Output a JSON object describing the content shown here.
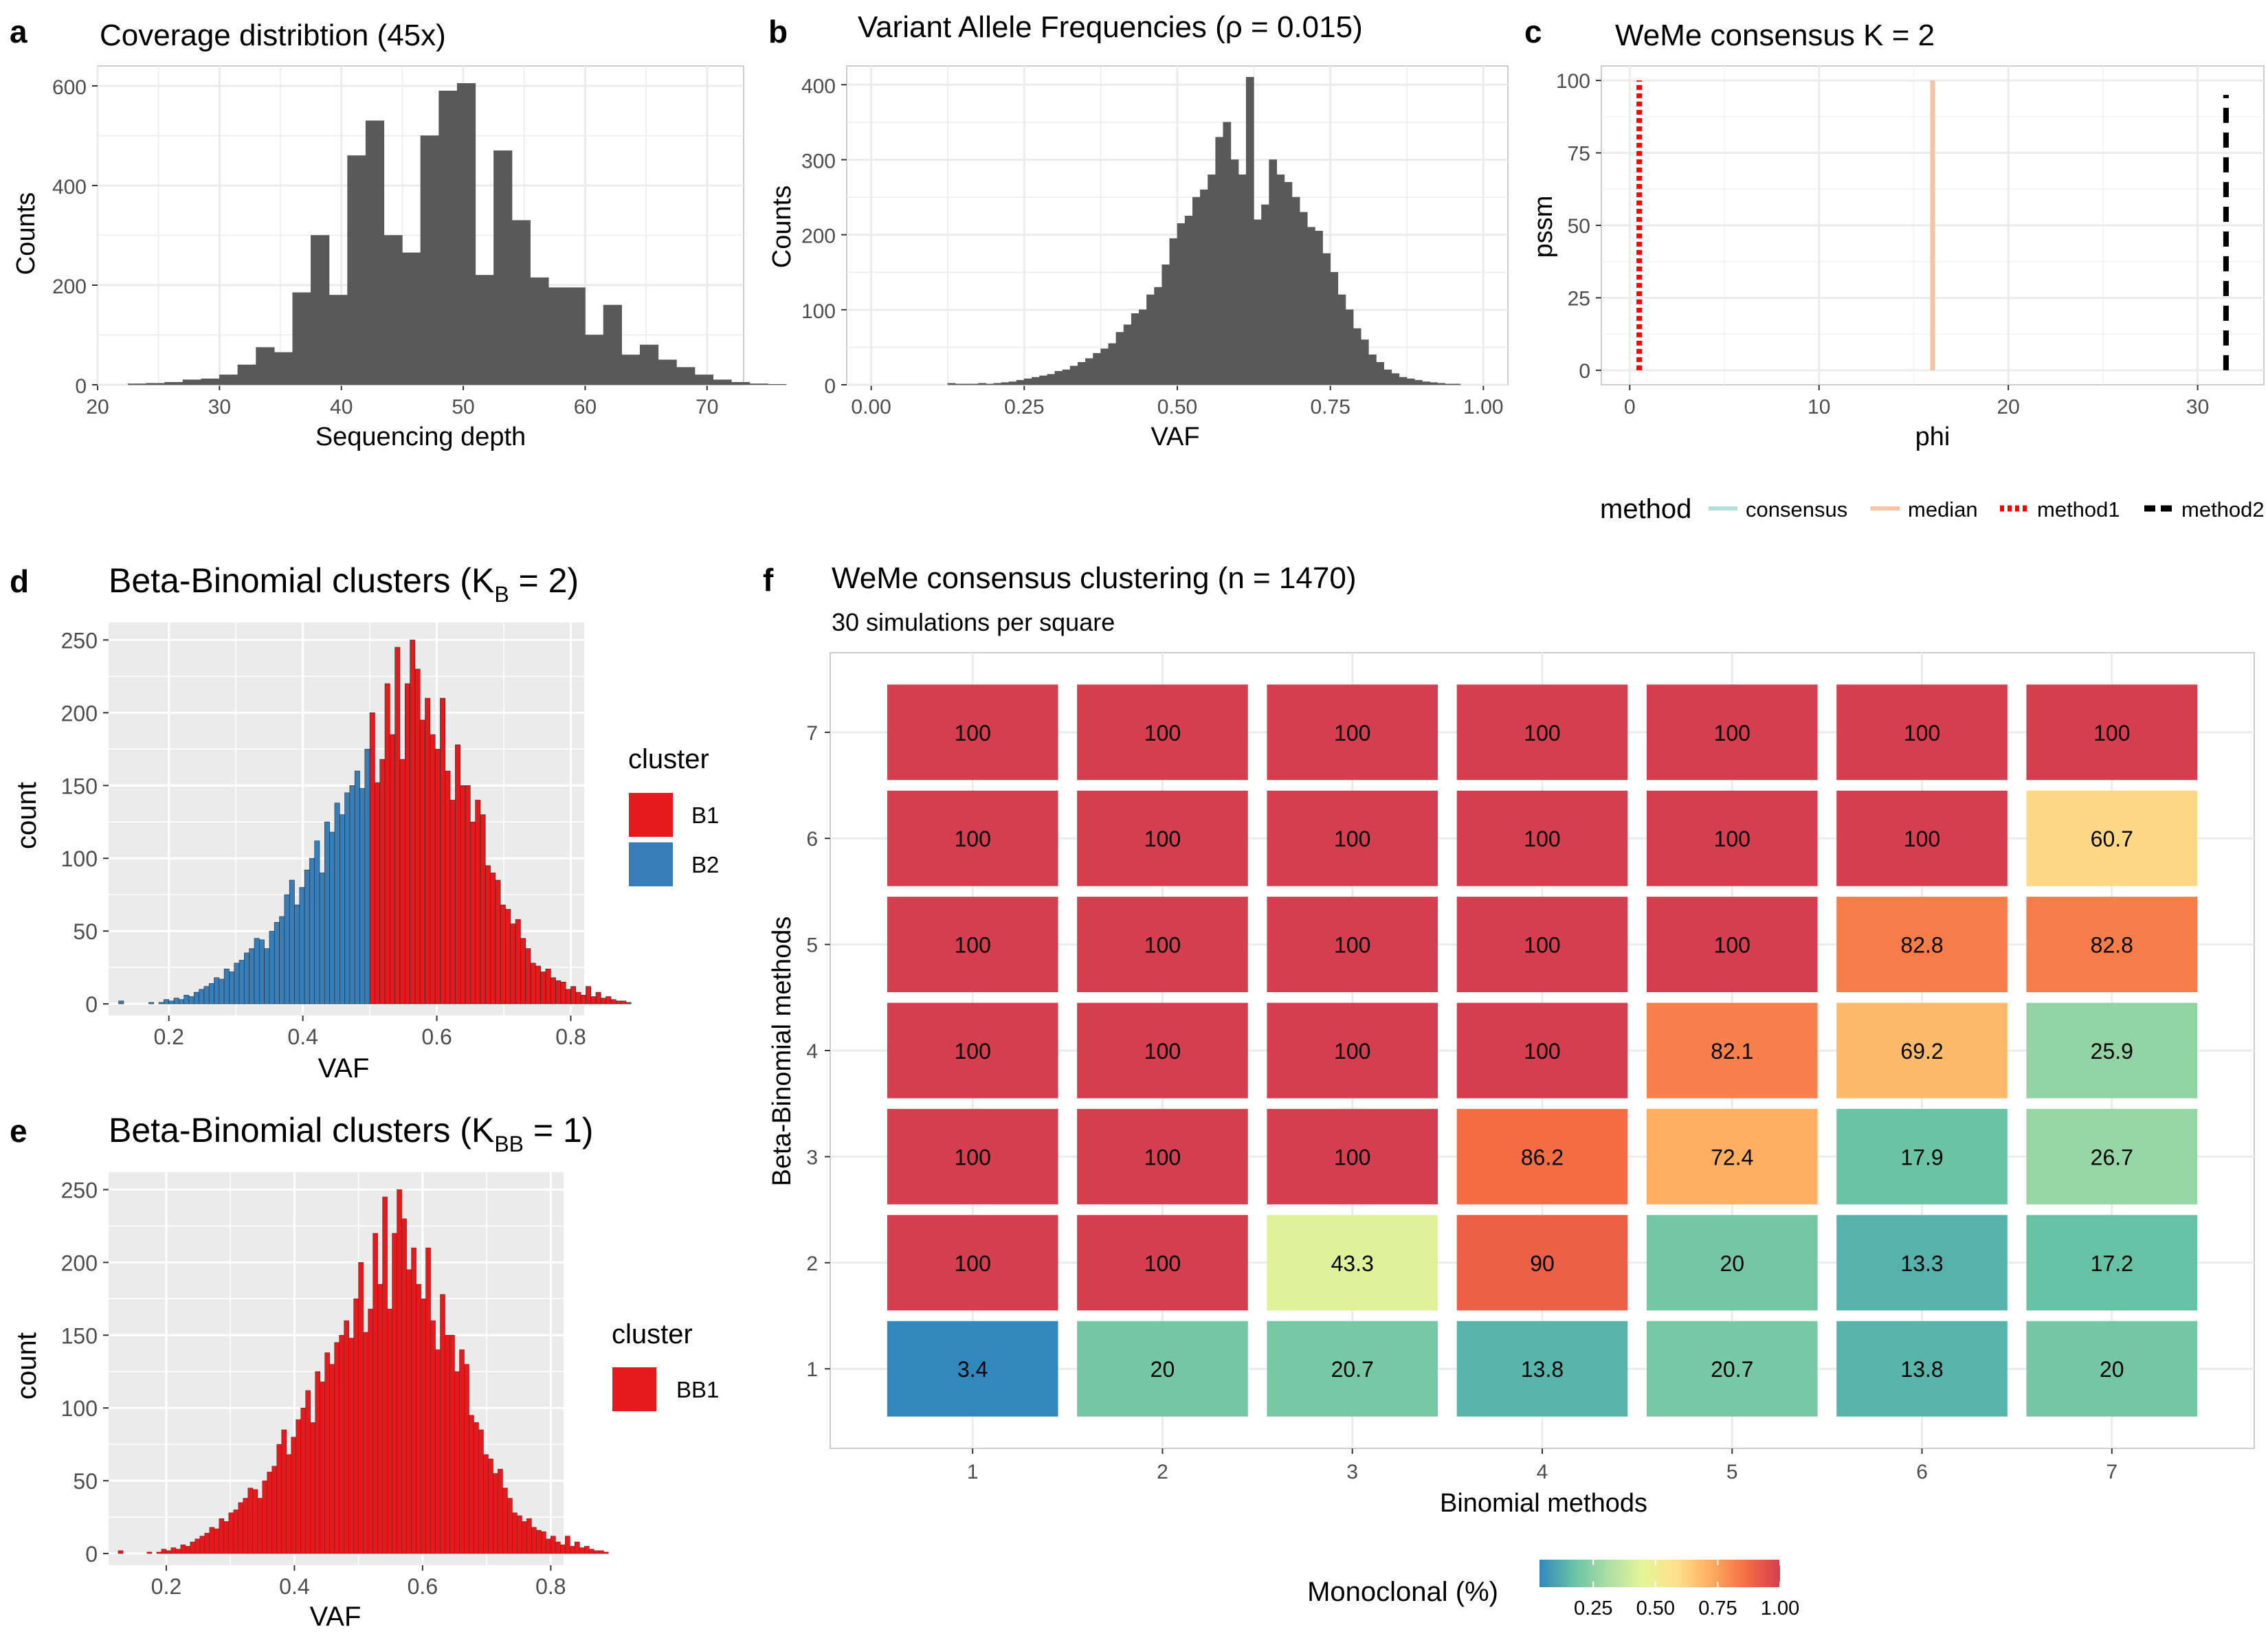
{
  "panels": {
    "a": {
      "letter": "a",
      "chart_data": {
        "type": "bar",
        "title": "Coverage distribtion (45x)",
        "xlabel": "Sequencing depth",
        "ylabel": "Counts",
        "xlim": [
          20,
          73
        ],
        "ylim": [
          0,
          640
        ],
        "xticks": [
          20,
          30,
          40,
          50,
          60,
          70
        ],
        "yticks": [
          0,
          200,
          400,
          600
        ],
        "bin_width": 1.5,
        "bin_start": 22.5,
        "values": [
          2,
          3,
          5,
          10,
          12,
          20,
          40,
          75,
          65,
          185,
          300,
          180,
          460,
          530,
          300,
          265,
          500,
          590,
          605,
          220,
          470,
          330,
          215,
          195,
          195,
          100,
          160,
          60,
          80,
          50,
          35,
          20,
          10,
          5,
          2,
          1
        ],
        "grid": true,
        "background": "white"
      }
    },
    "b": {
      "letter": "b",
      "chart_data": {
        "type": "bar",
        "title": "Variant Allele Frequencies (ρ = 0.015)",
        "xlabel": "VAF",
        "ylabel": "Counts",
        "xlim": [
          -0.04,
          1.04
        ],
        "ylim": [
          0,
          425
        ],
        "xticks": [
          0.0,
          0.25,
          0.5,
          0.75,
          1.0
        ],
        "xtick_labels": [
          "0.00",
          "0.25",
          "0.50",
          "0.75",
          "1.00"
        ],
        "yticks": [
          0,
          100,
          200,
          300,
          400
        ],
        "bin_width": 0.0125,
        "bin_start": 0.125,
        "values": [
          2,
          1,
          1,
          1,
          2,
          1,
          2,
          3,
          4,
          6,
          8,
          10,
          12,
          14,
          18,
          20,
          25,
          30,
          35,
          42,
          48,
          55,
          70,
          80,
          95,
          100,
          120,
          130,
          160,
          195,
          215,
          225,
          250,
          260,
          280,
          330,
          350,
          300,
          280,
          410,
          220,
          240,
          300,
          280,
          270,
          250,
          230,
          210,
          205,
          175,
          150,
          120,
          100,
          75,
          60,
          40,
          30,
          20,
          15,
          10,
          8,
          6,
          4,
          3,
          2,
          1,
          1
        ]
      }
    },
    "c": {
      "letter": "c",
      "chart_data": {
        "type": "line",
        "title": "WeMe consensus K = 2",
        "xlabel": "phi",
        "ylabel": "pssm",
        "xlim": [
          -1.5,
          33.5
        ],
        "ylim": [
          -5,
          105
        ],
        "xticks": [
          0,
          10,
          20,
          30
        ],
        "yticks": [
          0,
          25,
          50,
          75,
          100
        ],
        "series": [
          {
            "name": "consensus",
            "x": 16,
            "color": "#b2dfdb",
            "dash": "solid"
          },
          {
            "name": "median",
            "x": 16,
            "color": "#f5c4a4",
            "dash": "solid"
          },
          {
            "name": "method1",
            "x": 0.5,
            "color": "#ff0000",
            "dash": "dotted"
          },
          {
            "name": "method2",
            "x": 31.5,
            "color": "#000000",
            "dash": "dashed"
          }
        ],
        "line_ranges": {
          "consensus": [
            0,
            100
          ],
          "median": [
            0,
            100
          ],
          "method1": [
            0,
            100
          ],
          "method2": [
            0,
            95
          ]
        }
      },
      "legend": {
        "title": "method",
        "items": [
          "consensus",
          "median",
          "method1",
          "method2"
        ]
      }
    },
    "d": {
      "letter": "d",
      "chart_data": {
        "type": "bar",
        "title": "Beta-Binomial clusters (K",
        "title_sub": "B",
        "title_end": " = 2)",
        "xlabel": "VAF",
        "ylabel": "count",
        "xlim": [
          0.11,
          0.82
        ],
        "ylim": [
          -8,
          262
        ],
        "xticks": [
          0.2,
          0.4,
          0.6,
          0.8
        ],
        "yticks": [
          0,
          50,
          100,
          150,
          200,
          250
        ],
        "bin_width": 0.0075,
        "bin_start": 0.125,
        "split_at": 0.5,
        "values": [
          2,
          0,
          0,
          0,
          0,
          0,
          1,
          0,
          1,
          3,
          2,
          4,
          3,
          6,
          5,
          8,
          10,
          12,
          14,
          18,
          17,
          24,
          22,
          28,
          30,
          35,
          38,
          45,
          44,
          38,
          50,
          56,
          60,
          75,
          85,
          68,
          80,
          92,
          100,
          112,
          90,
          125,
          118,
          138,
          130,
          145,
          150,
          160,
          148,
          175,
          200,
          152,
          168,
          220,
          185,
          245,
          168,
          220,
          250,
          230,
          195,
          210,
          185,
          175,
          210,
          160,
          140,
          178,
          150,
          150,
          125,
          140,
          130,
          95,
          90,
          85,
          68,
          65,
          55,
          58,
          45,
          38,
          28,
          26,
          22,
          24,
          18,
          16,
          15,
          10,
          12,
          8,
          6,
          12,
          5,
          8,
          4,
          5,
          3,
          2,
          2,
          1
        ],
        "background": "#ebebeb"
      },
      "legend": {
        "title": "cluster",
        "items": [
          {
            "label": "B1",
            "color": "#e41a1c"
          },
          {
            "label": "B2",
            "color": "#377eb8"
          }
        ]
      }
    },
    "e": {
      "letter": "e",
      "chart_data": {
        "type": "bar",
        "title": "Beta-Binomial clusters (K",
        "title_sub": "BB",
        "title_end": " = 1)",
        "xlabel": "VAF",
        "ylabel": "count",
        "xlim": [
          0.11,
          0.82
        ],
        "ylim": [
          -8,
          262
        ],
        "xticks": [
          0.2,
          0.4,
          0.6,
          0.8
        ],
        "yticks": [
          0,
          50,
          100,
          150,
          200,
          250
        ],
        "bin_width": 0.0075,
        "bin_start": 0.125,
        "values": [
          2,
          0,
          0,
          0,
          0,
          0,
          1,
          0,
          1,
          3,
          2,
          4,
          3,
          6,
          5,
          8,
          10,
          12,
          14,
          18,
          17,
          24,
          22,
          28,
          30,
          35,
          38,
          45,
          44,
          38,
          50,
          56,
          60,
          75,
          85,
          68,
          80,
          92,
          100,
          112,
          90,
          125,
          118,
          138,
          130,
          145,
          150,
          160,
          148,
          175,
          200,
          152,
          168,
          220,
          185,
          245,
          168,
          220,
          250,
          230,
          195,
          210,
          185,
          175,
          210,
          160,
          140,
          178,
          150,
          150,
          125,
          140,
          130,
          95,
          90,
          85,
          68,
          65,
          55,
          58,
          45,
          38,
          28,
          26,
          22,
          24,
          18,
          16,
          15,
          10,
          12,
          8,
          6,
          12,
          5,
          8,
          4,
          5,
          3,
          2,
          2,
          1
        ],
        "background": "#ebebeb"
      },
      "legend": {
        "title": "cluster",
        "items": [
          {
            "label": "BB1",
            "color": "#e41a1c"
          }
        ]
      }
    },
    "f": {
      "letter": "f",
      "chart_data": {
        "type": "heatmap",
        "title": "WeMe consensus clustering (n = 1470)",
        "subtitle": "30 simulations per square",
        "xlabel": "Binomial methods",
        "ylabel": "Beta-Binomial methods",
        "x": [
          1,
          2,
          3,
          4,
          5,
          6,
          7
        ],
        "y": [
          1,
          2,
          3,
          4,
          5,
          6,
          7
        ],
        "values_by_row_y_descending": [
          [
            100,
            100,
            100,
            100,
            100,
            100,
            100
          ],
          [
            100,
            100,
            100,
            100,
            100,
            100,
            60.7
          ],
          [
            100,
            100,
            100,
            100,
            100,
            82.8,
            82.8
          ],
          [
            100,
            100,
            100,
            100,
            82.1,
            69.2,
            25.9
          ],
          [
            100,
            100,
            100,
            86.2,
            72.4,
            17.9,
            26.7
          ],
          [
            100,
            100,
            43.3,
            90,
            20,
            13.3,
            17.2
          ],
          [
            3.4,
            20,
            20.7,
            13.8,
            20.7,
            13.8,
            20
          ]
        ],
        "colorscale": [
          "#3288bd",
          "#66c2a5",
          "#abdda4",
          "#e6f598",
          "#fee08b",
          "#fdae61",
          "#f46d43",
          "#d53e4f"
        ],
        "legend": {
          "title": "Monoclonal (%)",
          "ticks": [
            "0.25",
            "0.50",
            "0.75",
            "1.00"
          ],
          "range": [
            0.034,
            1.0
          ]
        }
      }
    }
  }
}
